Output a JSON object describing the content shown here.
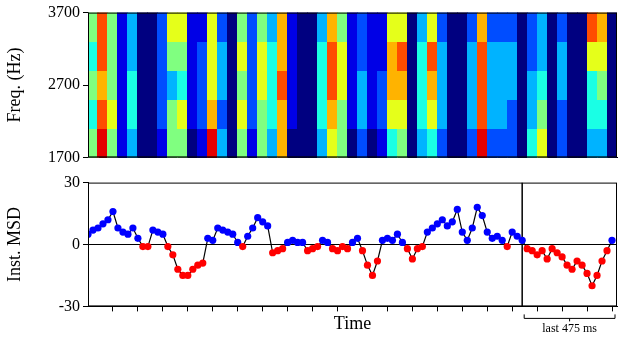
{
  "chart_data": [
    {
      "type": "heatmap",
      "ylabel": "Freq. (Hz)",
      "xlim": [
        0,
        2650
      ],
      "xticks": [],
      "ylim": [
        1700,
        3700
      ],
      "yticks": [
        1700,
        2700,
        3700
      ],
      "tick_labels": "y",
      "grid": false,
      "clim": [
        0,
        1
      ],
      "cells": [
        [
          0.5,
          0.9,
          0.5,
          0.1,
          0.3,
          0,
          0,
          0.1,
          0.5,
          0.5,
          0,
          0.1,
          0.9,
          0.3,
          0,
          0.5,
          0.1,
          0.5,
          0.3,
          0.7,
          0,
          0,
          0,
          0.3,
          0.6,
          0.5,
          0,
          0.2,
          0,
          0.1,
          0.4,
          0.5,
          0,
          0.3,
          0.4,
          0.2,
          0,
          0,
          0.2,
          0.9,
          0.2,
          0.2,
          0.2,
          0,
          0.4,
          0.6,
          0,
          0.2,
          0,
          0,
          0.3,
          0.3,
          0
        ],
        [
          0.4,
          0.8,
          0.6,
          0.1,
          0.4,
          0,
          0,
          0.2,
          0.5,
          0.6,
          0.1,
          0.2,
          0.7,
          0.2,
          0,
          0.6,
          0.2,
          0.5,
          0.4,
          0.7,
          0.1,
          0,
          0,
          0.4,
          0.7,
          0.5,
          0.1,
          0.3,
          0.1,
          0.2,
          0.6,
          0.6,
          0,
          0.4,
          0.6,
          0.3,
          0,
          0,
          0.3,
          0.8,
          0.3,
          0.3,
          0.2,
          0,
          0.3,
          0.5,
          0,
          0.2,
          0,
          0,
          0.4,
          0.4,
          0
        ],
        [
          0.5,
          0.7,
          0.5,
          0.1,
          0.4,
          0,
          0,
          0.2,
          0.3,
          0.4,
          0.1,
          0.2,
          0.6,
          0.3,
          0,
          0.5,
          0.2,
          0.6,
          0.4,
          0.8,
          0.1,
          0,
          0,
          0.4,
          0.8,
          0.6,
          0.1,
          0.3,
          0.1,
          0.2,
          0.7,
          0.7,
          0,
          0.4,
          0.7,
          0.3,
          0,
          0,
          0.3,
          0.8,
          0.3,
          0.3,
          0.3,
          0,
          0.3,
          0.4,
          0,
          0.3,
          0,
          0,
          0.4,
          0.5,
          0
        ],
        [
          0.4,
          0.8,
          0.5,
          0.1,
          0.3,
          0,
          0,
          0.2,
          0.5,
          0.5,
          0.1,
          0.2,
          0.6,
          0.3,
          0,
          0.6,
          0.2,
          0.6,
          0.4,
          0.7,
          0.1,
          0,
          0,
          0.4,
          0.8,
          0.6,
          0.1,
          0.2,
          0.1,
          0.1,
          0.7,
          0.8,
          0,
          0.4,
          0.8,
          0.3,
          0,
          0,
          0.3,
          0.8,
          0.3,
          0.3,
          0.3,
          0,
          0.2,
          0.3,
          0,
          0.3,
          0,
          0,
          0.6,
          0.6,
          0
        ],
        [
          0.5,
          0.8,
          0.5,
          0.1,
          0.3,
          0,
          0,
          0.2,
          0.6,
          0.6,
          0.1,
          0.1,
          0.6,
          0.2,
          0,
          0.5,
          0.2,
          0.5,
          0.3,
          0.7,
          0.1,
          0,
          0,
          0.3,
          0.7,
          0.5,
          0.1,
          0.2,
          0.1,
          0.1,
          0.6,
          0.6,
          0,
          0.3,
          0.6,
          0.2,
          0,
          0,
          0.2,
          0.7,
          0.2,
          0.2,
          0.2,
          0,
          0.2,
          0.3,
          0,
          0.2,
          0,
          0,
          0.8,
          0.7,
          0
        ]
      ]
    },
    {
      "type": "scatter",
      "ylabel": "Inst. MSD",
      "xlabel": "Time",
      "xlim": [
        0,
        2650
      ],
      "xticks": [
        125,
        250,
        375,
        500,
        625,
        750,
        875,
        1000,
        1125,
        1250,
        1375,
        1500,
        1625,
        1750,
        1875,
        2000,
        2125,
        2250,
        2375,
        2500,
        2625
      ],
      "ylim": [
        -30,
        30
      ],
      "yticks": [
        -30,
        0,
        30
      ],
      "tick_labels": "y",
      "grid": false,
      "marker": "circle",
      "line_style": "solid",
      "hlines": [
        0
      ],
      "vlines": [
        2175
      ],
      "annotations": [
        {
          "text": "last 475 ms",
          "x": [
            2175,
            2650
          ]
        }
      ],
      "x": [
        0,
        25,
        50,
        75,
        100,
        125,
        150,
        175,
        200,
        225,
        250,
        275,
        300,
        325,
        350,
        375,
        400,
        425,
        450,
        475,
        500,
        525,
        550,
        575,
        600,
        625,
        650,
        675,
        700,
        725,
        750,
        775,
        800,
        825,
        850,
        875,
        900,
        925,
        950,
        975,
        1000,
        1025,
        1050,
        1075,
        1100,
        1125,
        1150,
        1175,
        1200,
        1225,
        1250,
        1275,
        1300,
        1325,
        1350,
        1375,
        1400,
        1425,
        1450,
        1475,
        1500,
        1525,
        1550,
        1575,
        1600,
        1625,
        1650,
        1675,
        1700,
        1725,
        1750,
        1775,
        1800,
        1825,
        1850,
        1875,
        1900,
        1925,
        1950,
        1975,
        2000,
        2025,
        2050,
        2075,
        2100,
        2125,
        2150,
        2175,
        2200,
        2225,
        2250,
        2275,
        2300,
        2325,
        2350,
        2375,
        2400,
        2425,
        2450,
        2475,
        2500,
        2525,
        2550,
        2575,
        2600,
        2625
      ],
      "values": [
        5,
        7,
        8,
        10,
        12,
        16,
        8,
        6,
        5,
        8,
        3,
        -1,
        -1,
        7,
        6,
        5,
        -1,
        -5,
        -12,
        -15,
        -15,
        -12,
        -10,
        -9,
        3,
        2,
        8,
        7,
        6,
        5,
        1,
        -1,
        4,
        8,
        13,
        11,
        9,
        -4,
        -3,
        -2,
        1,
        2,
        1,
        1,
        -3,
        -2,
        -1,
        2,
        1,
        -2,
        -3,
        -1,
        -2,
        1,
        3,
        -3,
        -10,
        -15,
        -8,
        2,
        3,
        2,
        5,
        1,
        -2,
        -7,
        -2,
        -1,
        6,
        8,
        10,
        12,
        9,
        11,
        17,
        6,
        2,
        8,
        18,
        14,
        6,
        3,
        4,
        2,
        -1,
        6,
        4,
        2,
        -2,
        -3,
        -5,
        -3,
        -7,
        -2,
        -4,
        -6,
        -10,
        -12,
        -8,
        -10,
        -14,
        -20,
        -15,
        -8,
        -3,
        2
      ],
      "colors": [
        "#0000ff",
        "#0000ff",
        "#0000ff",
        "#0000ff",
        "#0000ff",
        "#0000ff",
        "#0000ff",
        "#0000ff",
        "#0000ff",
        "#0000ff",
        "#0000ff",
        "#ff0000",
        "#ff0000",
        "#0000ff",
        "#0000ff",
        "#0000ff",
        "#ff0000",
        "#ff0000",
        "#ff0000",
        "#ff0000",
        "#ff0000",
        "#ff0000",
        "#ff0000",
        "#ff0000",
        "#0000ff",
        "#0000ff",
        "#0000ff",
        "#0000ff",
        "#0000ff",
        "#0000ff",
        "#0000ff",
        "#ff0000",
        "#0000ff",
        "#0000ff",
        "#0000ff",
        "#0000ff",
        "#0000ff",
        "#ff0000",
        "#ff0000",
        "#ff0000",
        "#0000ff",
        "#0000ff",
        "#0000ff",
        "#0000ff",
        "#ff0000",
        "#ff0000",
        "#ff0000",
        "#0000ff",
        "#0000ff",
        "#ff0000",
        "#ff0000",
        "#ff0000",
        "#ff0000",
        "#0000ff",
        "#0000ff",
        "#ff0000",
        "#ff0000",
        "#ff0000",
        "#ff0000",
        "#0000ff",
        "#0000ff",
        "#0000ff",
        "#0000ff",
        "#0000ff",
        "#ff0000",
        "#ff0000",
        "#ff0000",
        "#ff0000",
        "#0000ff",
        "#0000ff",
        "#0000ff",
        "#0000ff",
        "#0000ff",
        "#0000ff",
        "#0000ff",
        "#0000ff",
        "#0000ff",
        "#0000ff",
        "#0000ff",
        "#0000ff",
        "#0000ff",
        "#0000ff",
        "#0000ff",
        "#0000ff",
        "#ff0000",
        "#0000ff",
        "#0000ff",
        "#0000ff",
        "#ff0000",
        "#ff0000",
        "#ff0000",
        "#ff0000",
        "#ff0000",
        "#ff0000",
        "#ff0000",
        "#ff0000",
        "#ff0000",
        "#ff0000",
        "#ff0000",
        "#ff0000",
        "#ff0000",
        "#ff0000",
        "#ff0000",
        "#ff0000",
        "#ff0000",
        "#0000ff"
      ]
    }
  ]
}
